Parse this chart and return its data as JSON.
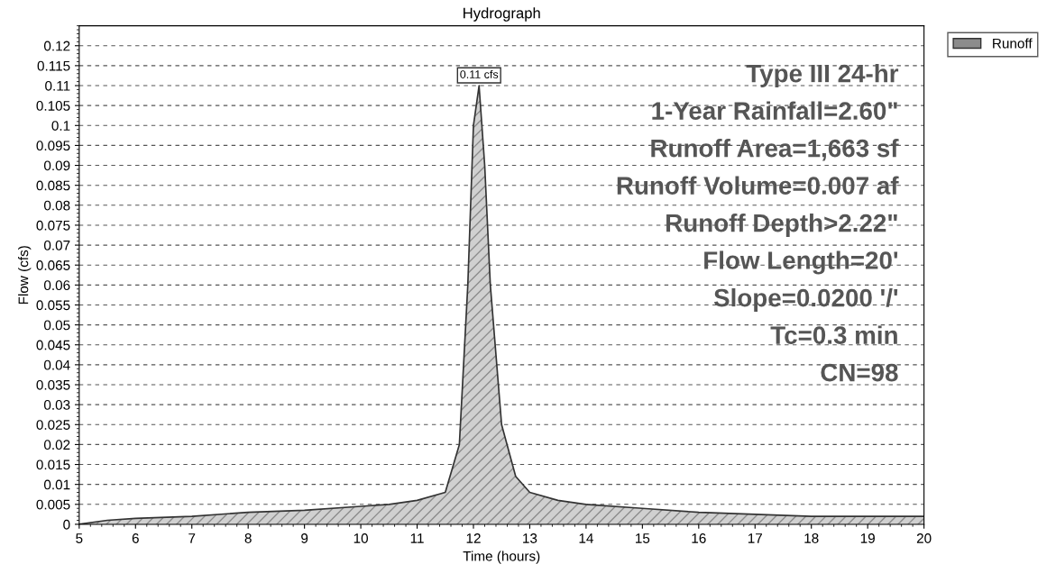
{
  "chart_data": {
    "type": "area",
    "title": "Hydrograph",
    "xlabel": "Time (hours)",
    "ylabel": "Flow (cfs)",
    "x": [
      5,
      5.5,
      6,
      7,
      8,
      9,
      10,
      10.5,
      11,
      11.5,
      11.75,
      11.9,
      12.0,
      12.1,
      12.2,
      12.3,
      12.5,
      12.75,
      13,
      13.5,
      14,
      15,
      16,
      17,
      18,
      19,
      20
    ],
    "series": [
      {
        "name": "Runoff",
        "color": "#8c8c8c",
        "values": [
          0,
          0.001,
          0.0015,
          0.002,
          0.003,
          0.0035,
          0.0045,
          0.005,
          0.006,
          0.008,
          0.02,
          0.06,
          0.1,
          0.11,
          0.09,
          0.06,
          0.025,
          0.012,
          0.008,
          0.006,
          0.005,
          0.004,
          0.003,
          0.0025,
          0.002,
          0.002,
          0.002
        ]
      }
    ],
    "xlim": [
      5,
      20
    ],
    "xticks": [
      5,
      6,
      7,
      8,
      9,
      10,
      11,
      12,
      13,
      14,
      15,
      16,
      17,
      18,
      19,
      20
    ],
    "ylim": [
      0,
      0.125
    ],
    "yticks": [
      0,
      0.005,
      0.01,
      0.015,
      0.02,
      0.025,
      0.03,
      0.035,
      0.04,
      0.045,
      0.05,
      0.055,
      0.06,
      0.065,
      0.07,
      0.075,
      0.08,
      0.085,
      0.09,
      0.095,
      0.1,
      0.105,
      0.11,
      0.115,
      0.12
    ],
    "grid": "y",
    "legend": "top right",
    "line_style": "solid",
    "annotations": [
      {
        "text": "0.11 cfs",
        "x": 12.1,
        "y": 0.11
      },
      "Type III 24-hr",
      "1-Year Rainfall=2.60\"",
      "Runoff Area=1,663 sf",
      "Runoff Volume=0.007 af",
      "Runoff Depth>2.22\"",
      "Flow Length=20'",
      "Slope=0.0200 '/'",
      "Tc=0.3 min",
      "CN=98"
    ]
  }
}
